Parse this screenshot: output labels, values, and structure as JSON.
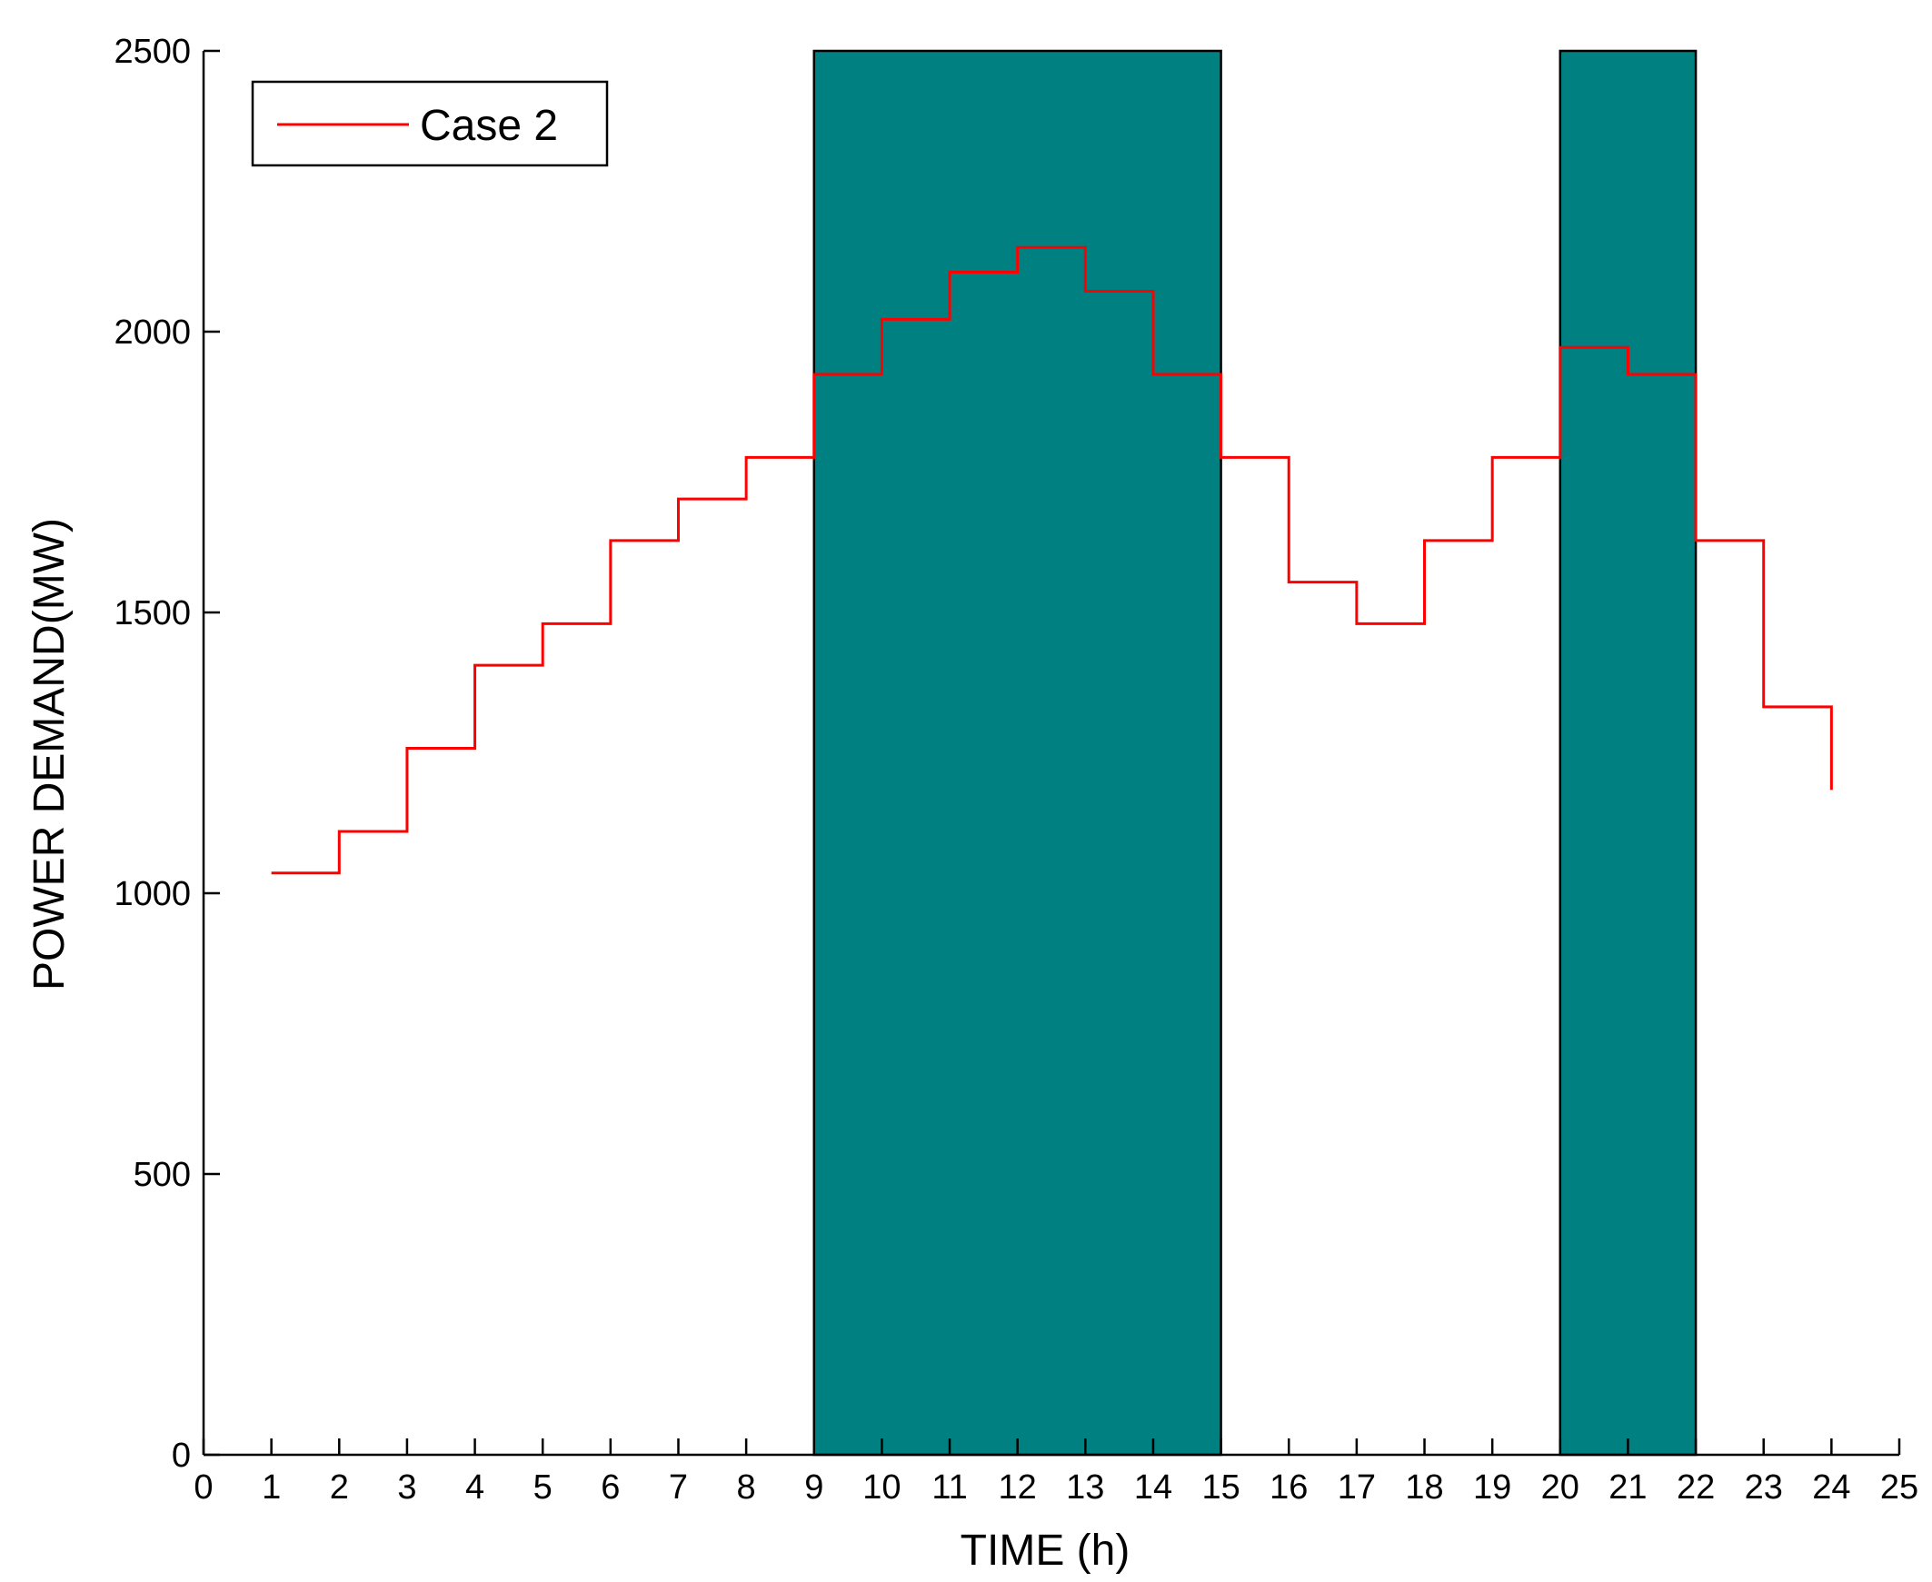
{
  "chart_data": {
    "type": "line",
    "step": true,
    "xlabel": "TIME (h)",
    "ylabel": "POWER DEMAND(MW)",
    "xlim": [
      0,
      25
    ],
    "ylim": [
      0,
      2500
    ],
    "xticks": [
      0,
      1,
      2,
      3,
      4,
      5,
      6,
      7,
      8,
      9,
      10,
      11,
      12,
      13,
      14,
      15,
      16,
      17,
      18,
      19,
      20,
      21,
      22,
      23,
      24,
      25
    ],
    "yticks": [
      0,
      500,
      1000,
      1500,
      2000,
      2500
    ],
    "grid": false,
    "legend_position": "top-left",
    "shaded_regions": [
      {
        "x_start": 9,
        "x_end": 15,
        "color": "#008080"
      },
      {
        "x_start": 20,
        "x_end": 22,
        "color": "#008080"
      }
    ],
    "series": [
      {
        "name": "Case 2",
        "color": "#ff0000",
        "x": [
          1,
          2,
          3,
          4,
          5,
          6,
          7,
          8,
          9,
          10,
          11,
          12,
          13,
          14,
          15,
          16,
          17,
          18,
          19,
          20,
          21,
          22,
          23,
          24
        ],
        "values": [
          1036,
          1110,
          1258,
          1406,
          1480,
          1628,
          1702,
          1776,
          1924,
          2022,
          2106,
          2150,
          2072,
          1924,
          1776,
          1554,
          1480,
          1628,
          1776,
          1972,
          1924,
          1628,
          1332,
          1184
        ]
      }
    ]
  }
}
